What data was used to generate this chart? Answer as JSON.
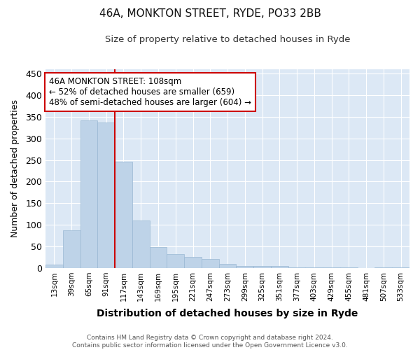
{
  "title1": "46A, MONKTON STREET, RYDE, PO33 2BB",
  "title2": "Size of property relative to detached houses in Ryde",
  "xlabel": "Distribution of detached houses by size in Ryde",
  "ylabel": "Number of detached properties",
  "categories": [
    "13sqm",
    "39sqm",
    "65sqm",
    "91sqm",
    "117sqm",
    "143sqm",
    "169sqm",
    "195sqm",
    "221sqm",
    "247sqm",
    "273sqm",
    "299sqm",
    "325sqm",
    "351sqm",
    "377sqm",
    "403sqm",
    "429sqm",
    "455sqm",
    "481sqm",
    "507sqm",
    "533sqm"
  ],
  "values": [
    8,
    88,
    342,
    336,
    246,
    110,
    49,
    33,
    26,
    21,
    10,
    5,
    5,
    5,
    2,
    2,
    1,
    1,
    0,
    1,
    1
  ],
  "bar_color": "#bed3e8",
  "bar_edge_color": "#9ab8d4",
  "figure_bg": "#ffffff",
  "plot_bg": "#dce8f5",
  "grid_color": "#ffffff",
  "vline_color": "#cc0000",
  "vline_x": 4.0,
  "annotation_text": "46A MONKTON STREET: 108sqm\n← 52% of detached houses are smaller (659)\n48% of semi-detached houses are larger (604) →",
  "annotation_box_facecolor": "#ffffff",
  "annotation_box_edgecolor": "#cc0000",
  "footer": "Contains HM Land Registry data © Crown copyright and database right 2024.\nContains public sector information licensed under the Open Government Licence v3.0.",
  "ylim": [
    0,
    460
  ],
  "yticks": [
    0,
    50,
    100,
    150,
    200,
    250,
    300,
    350,
    400,
    450
  ],
  "figsize": [
    6.0,
    5.0
  ],
  "dpi": 100
}
